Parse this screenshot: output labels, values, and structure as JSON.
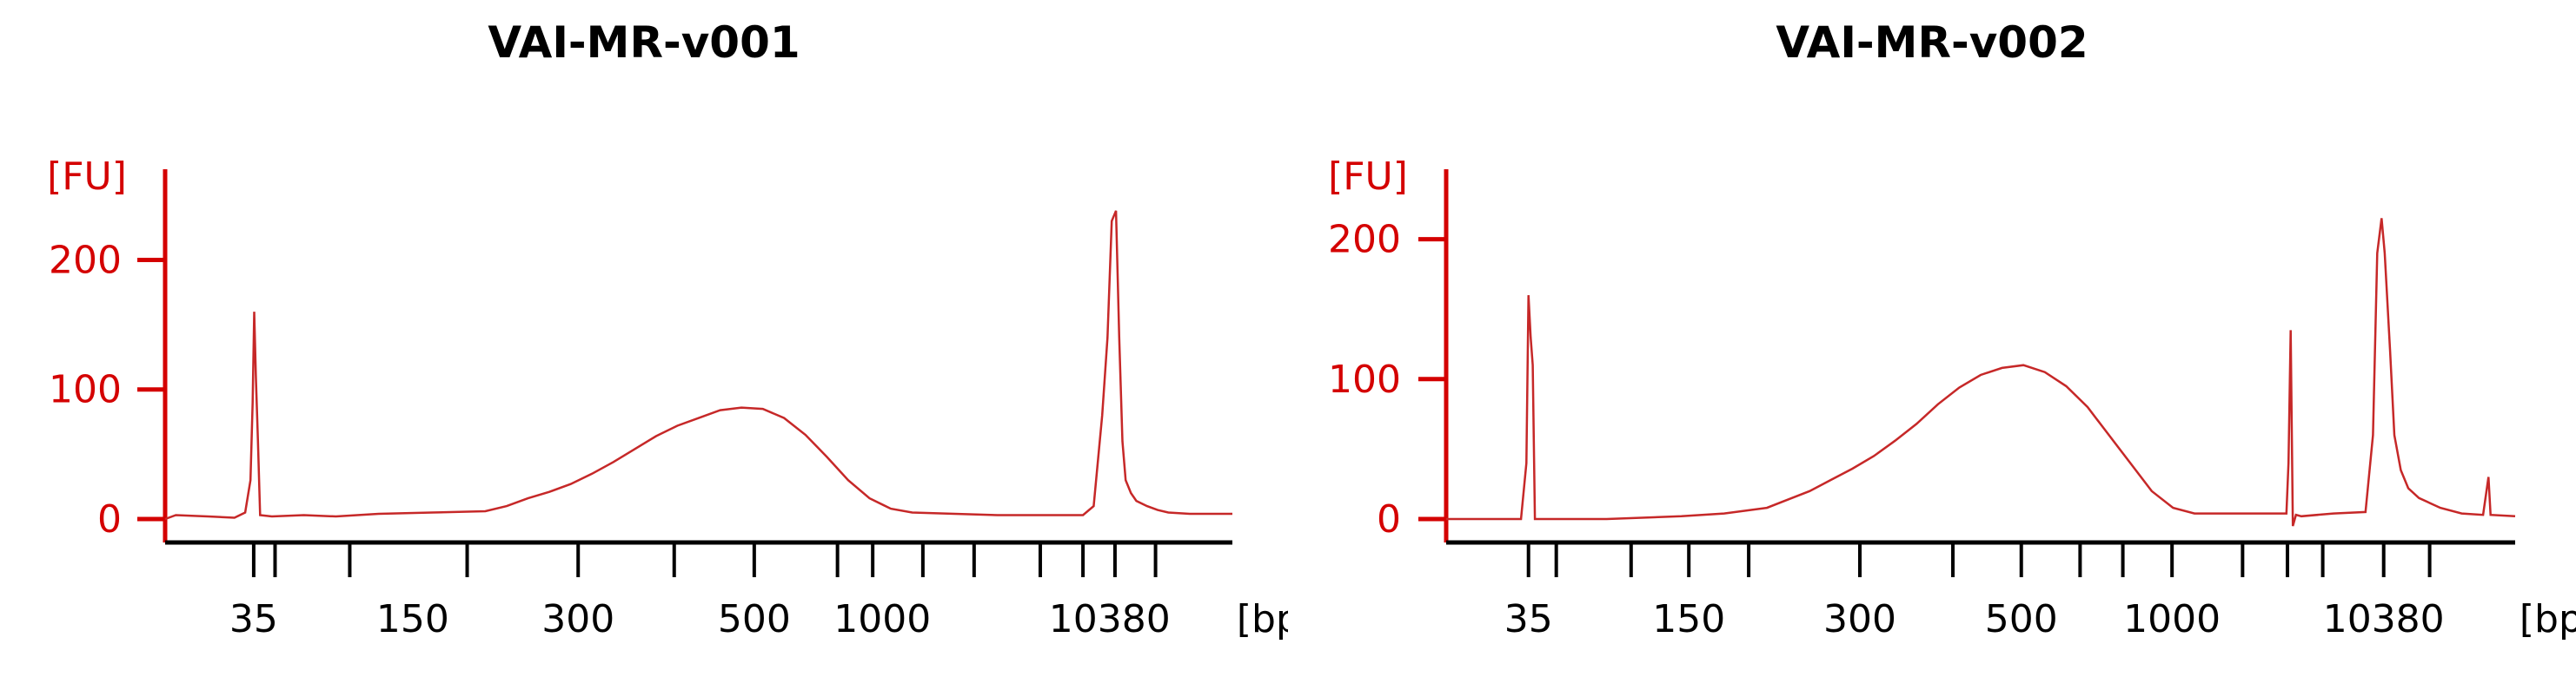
{
  "chart_data": [
    {
      "type": "line",
      "title": "VAI-MR-v001",
      "y_unit_label": "[FU]",
      "x_unit_label": "[bp]",
      "ylim": [
        -25,
        270
      ],
      "y_ticks": [
        0,
        100,
        200
      ],
      "x_tick_labels": [
        "35",
        "150",
        "300",
        "500",
        "1000",
        "10380"
      ],
      "x_scale": "migration position (normalized 0-1 along the bp axis)",
      "x_ticks": [
        0.083,
        0.103,
        0.173,
        0.283,
        0.387,
        0.477,
        0.552,
        0.63,
        0.663,
        0.71,
        0.758,
        0.82,
        0.86,
        0.89,
        0.928
      ],
      "x_tick_label_positions": [
        0.083,
        0.232,
        0.387,
        0.552,
        0.672,
        0.885
      ],
      "series": [
        {
          "color": "#c62828",
          "points": [
            [
              0.0,
              0
            ],
            [
              0.01,
              3
            ],
            [
              0.04,
              2
            ],
            [
              0.065,
              1
            ],
            [
              0.075,
              5
            ],
            [
              0.08,
              30
            ],
            [
              0.082,
              90
            ],
            [
              0.0835,
              160
            ],
            [
              0.085,
              110
            ],
            [
              0.087,
              60
            ],
            [
              0.089,
              3
            ],
            [
              0.1,
              2
            ],
            [
              0.13,
              3
            ],
            [
              0.16,
              2
            ],
            [
              0.2,
              4
            ],
            [
              0.25,
              5
            ],
            [
              0.3,
              6
            ],
            [
              0.32,
              10
            ],
            [
              0.34,
              16
            ],
            [
              0.36,
              21
            ],
            [
              0.38,
              27
            ],
            [
              0.4,
              35
            ],
            [
              0.42,
              44
            ],
            [
              0.44,
              54
            ],
            [
              0.46,
              64
            ],
            [
              0.48,
              72
            ],
            [
              0.5,
              78
            ],
            [
              0.52,
              84
            ],
            [
              0.54,
              86
            ],
            [
              0.56,
              85
            ],
            [
              0.58,
              78
            ],
            [
              0.6,
              65
            ],
            [
              0.62,
              48
            ],
            [
              0.64,
              30
            ],
            [
              0.66,
              16
            ],
            [
              0.68,
              8
            ],
            [
              0.7,
              5
            ],
            [
              0.74,
              4
            ],
            [
              0.78,
              3
            ],
            [
              0.83,
              3
            ],
            [
              0.86,
              3
            ],
            [
              0.87,
              10
            ],
            [
              0.878,
              80
            ],
            [
              0.883,
              140
            ],
            [
              0.887,
              230
            ],
            [
              0.891,
              238
            ],
            [
              0.894,
              140
            ],
            [
              0.897,
              60
            ],
            [
              0.9,
              30
            ],
            [
              0.905,
              20
            ],
            [
              0.91,
              14
            ],
            [
              0.92,
              10
            ],
            [
              0.93,
              7
            ],
            [
              0.94,
              5
            ],
            [
              0.96,
              4
            ],
            [
              1.0,
              4
            ]
          ]
        }
      ]
    },
    {
      "type": "line",
      "title": "VAI-MR-v002",
      "y_unit_label": "[FU]",
      "x_unit_label": "[bp]",
      "ylim": [
        -25,
        250
      ],
      "y_ticks": [
        0,
        100,
        200
      ],
      "x_tick_labels": [
        "35",
        "150",
        "300",
        "500",
        "1000",
        "10380"
      ],
      "x_scale": "migration position (normalized 0-1 along the bp axis)",
      "x_ticks": [
        0.077,
        0.103,
        0.173,
        0.227,
        0.283,
        0.387,
        0.474,
        0.538,
        0.593,
        0.633,
        0.679,
        0.745,
        0.787,
        0.82,
        0.877,
        0.92
      ],
      "x_tick_label_positions": [
        0.077,
        0.227,
        0.387,
        0.538,
        0.679,
        0.877
      ],
      "series": [
        {
          "color": "#c62828",
          "points": [
            [
              0.0,
              0
            ],
            [
              0.07,
              0
            ],
            [
              0.075,
              40
            ],
            [
              0.077,
              160
            ],
            [
              0.079,
              130
            ],
            [
              0.081,
              110
            ],
            [
              0.083,
              0
            ],
            [
              0.1,
              0
            ],
            [
              0.15,
              0
            ],
            [
              0.22,
              2
            ],
            [
              0.26,
              4
            ],
            [
              0.3,
              8
            ],
            [
              0.32,
              14
            ],
            [
              0.34,
              20
            ],
            [
              0.36,
              28
            ],
            [
              0.38,
              36
            ],
            [
              0.4,
              45
            ],
            [
              0.42,
              56
            ],
            [
              0.44,
              68
            ],
            [
              0.46,
              82
            ],
            [
              0.48,
              94
            ],
            [
              0.5,
              103
            ],
            [
              0.52,
              108
            ],
            [
              0.54,
              110
            ],
            [
              0.56,
              105
            ],
            [
              0.58,
              95
            ],
            [
              0.6,
              80
            ],
            [
              0.62,
              60
            ],
            [
              0.64,
              40
            ],
            [
              0.66,
              20
            ],
            [
              0.68,
              8
            ],
            [
              0.7,
              4
            ],
            [
              0.75,
              4
            ],
            [
              0.786,
              4
            ],
            [
              0.788,
              40
            ],
            [
              0.79,
              135
            ],
            [
              0.792,
              -5
            ],
            [
              0.795,
              3
            ],
            [
              0.8,
              2
            ],
            [
              0.83,
              4
            ],
            [
              0.86,
              5
            ],
            [
              0.867,
              60
            ],
            [
              0.871,
              190
            ],
            [
              0.875,
              215
            ],
            [
              0.878,
              190
            ],
            [
              0.883,
              120
            ],
            [
              0.887,
              60
            ],
            [
              0.893,
              35
            ],
            [
              0.9,
              22
            ],
            [
              0.91,
              15
            ],
            [
              0.93,
              8
            ],
            [
              0.95,
              4
            ],
            [
              0.97,
              3
            ],
            [
              0.975,
              30
            ],
            [
              0.977,
              3
            ],
            [
              1.0,
              2
            ]
          ]
        }
      ]
    }
  ]
}
